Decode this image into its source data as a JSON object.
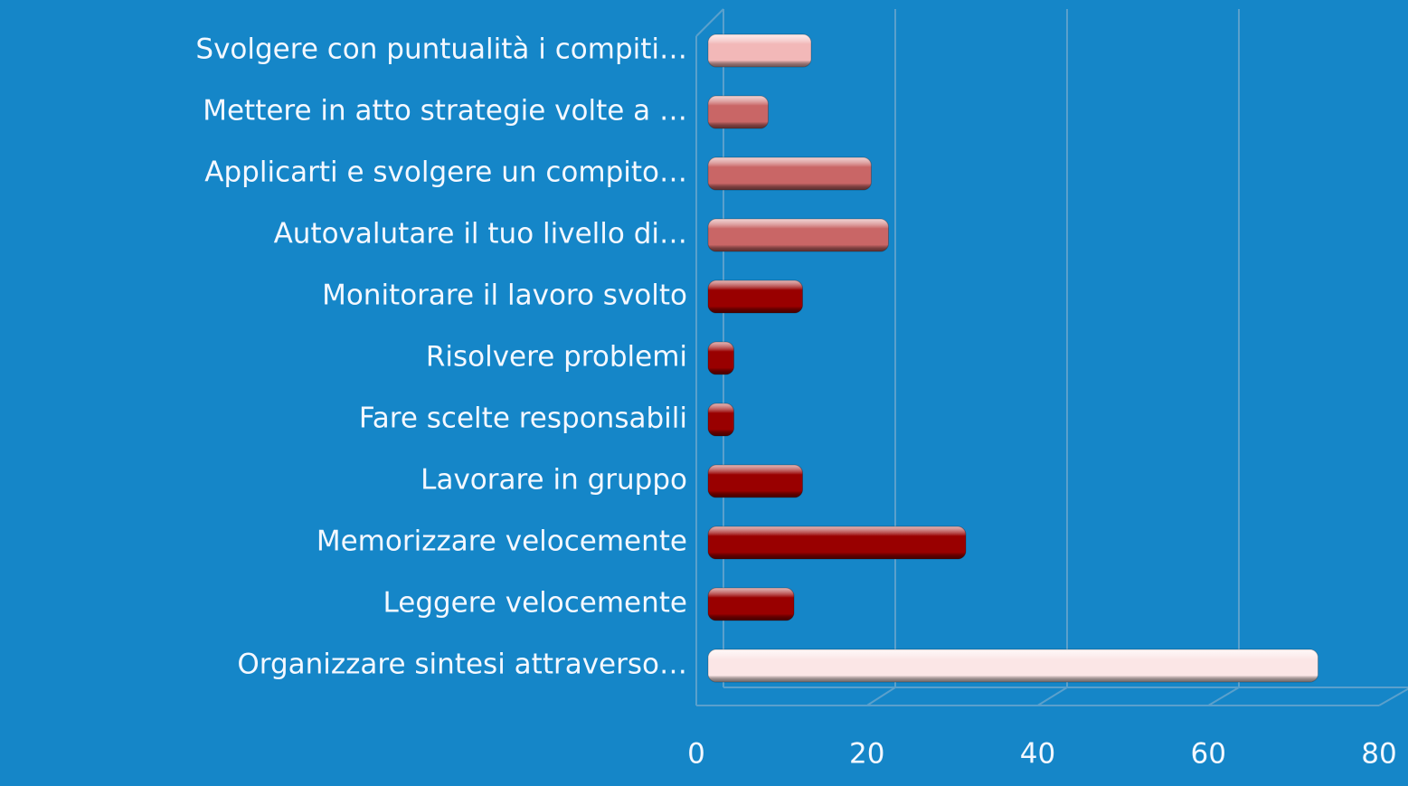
{
  "chart_data": {
    "type": "bar",
    "orientation": "horizontal",
    "categories": [
      "Svolgere con puntualità i compiti…",
      "Mettere in atto strategie volte a …",
      "Applicarti e svolgere un compito…",
      "Autovalutare il tuo livello di…",
      "Monitorare il lavoro svolto",
      "Risolvere problemi",
      "Fare scelte responsabili",
      "Lavorare in gruppo",
      "Memorizzare velocemente",
      "Leggere velocemente",
      "Organizzare sintesi attraverso…"
    ],
    "values": [
      12,
      7,
      19,
      21,
      11,
      3,
      3,
      11,
      30,
      10,
      71
    ],
    "colors": [
      "#f2b8b8",
      "#c96666",
      "#c96666",
      "#c96666",
      "#990000",
      "#990000",
      "#990000",
      "#990000",
      "#990000",
      "#990000",
      "#fbe6e6"
    ],
    "xlim": [
      0,
      80
    ],
    "xticks": [
      0,
      20,
      40,
      60,
      80
    ],
    "grid": true
  }
}
